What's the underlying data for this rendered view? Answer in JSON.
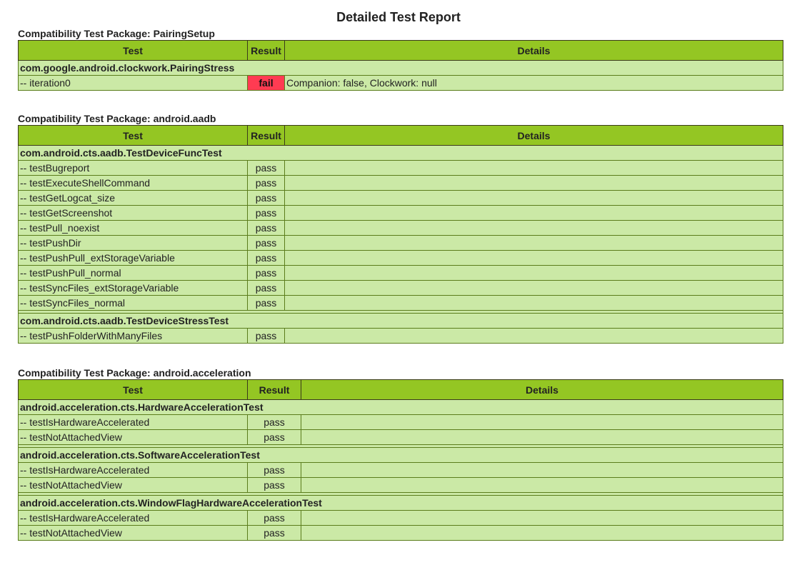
{
  "title": "Detailed Test Report",
  "headers": {
    "test": "Test",
    "result": "Result",
    "details": "Details"
  },
  "packages": [
    {
      "label": "Compatibility Test Package: PairingSetup",
      "result_col": 52,
      "classes": [
        {
          "name": "com.google.android.clockwork.PairingStress",
          "tests": [
            {
              "name": "-- iteration0",
              "result": "fail",
              "details": "Companion: false, Clockwork: null"
            }
          ]
        }
      ]
    },
    {
      "label": "Compatibility Test Package: android.aadb",
      "result_col": 52,
      "classes": [
        {
          "name": "com.android.cts.aadb.TestDeviceFuncTest",
          "tests": [
            {
              "name": "-- testBugreport",
              "result": "pass",
              "details": ""
            },
            {
              "name": "-- testExecuteShellCommand",
              "result": "pass",
              "details": ""
            },
            {
              "name": "-- testGetLogcat_size",
              "result": "pass",
              "details": ""
            },
            {
              "name": "-- testGetScreenshot",
              "result": "pass",
              "details": ""
            },
            {
              "name": "-- testPull_noexist",
              "result": "pass",
              "details": ""
            },
            {
              "name": "-- testPushDir",
              "result": "pass",
              "details": ""
            },
            {
              "name": "-- testPushPull_extStorageVariable",
              "result": "pass",
              "details": ""
            },
            {
              "name": "-- testPushPull_normal",
              "result": "pass",
              "details": ""
            },
            {
              "name": "-- testSyncFiles_extStorageVariable",
              "result": "pass",
              "details": ""
            },
            {
              "name": "-- testSyncFiles_normal",
              "result": "pass",
              "details": ""
            }
          ]
        },
        {
          "name": "com.android.cts.aadb.TestDeviceStressTest",
          "tests": [
            {
              "name": "-- testPushFolderWithManyFiles",
              "result": "pass",
              "details": ""
            }
          ]
        }
      ]
    },
    {
      "label": "Compatibility Test Package: android.acceleration",
      "result_col": 75,
      "classes": [
        {
          "name": "android.acceleration.cts.HardwareAccelerationTest",
          "tests": [
            {
              "name": "-- testIsHardwareAccelerated",
              "result": "pass",
              "details": ""
            },
            {
              "name": "-- testNotAttachedView",
              "result": "pass",
              "details": ""
            }
          ]
        },
        {
          "name": "android.acceleration.cts.SoftwareAccelerationTest",
          "tests": [
            {
              "name": "-- testIsHardwareAccelerated",
              "result": "pass",
              "details": ""
            },
            {
              "name": "-- testNotAttachedView",
              "result": "pass",
              "details": ""
            }
          ]
        },
        {
          "name": "android.acceleration.cts.WindowFlagHardwareAccelerationTest",
          "tests": [
            {
              "name": "-- testIsHardwareAccelerated",
              "result": "pass",
              "details": ""
            },
            {
              "name": "-- testNotAttachedView",
              "result": "pass",
              "details": ""
            }
          ]
        }
      ]
    }
  ],
  "colors": {
    "header": "#94c623",
    "row": "#cbe9a6",
    "fail": "#ff3b52"
  }
}
